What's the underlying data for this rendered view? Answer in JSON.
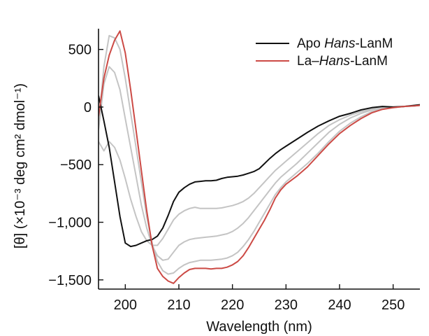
{
  "chart_data": {
    "type": "line",
    "xlabel": "Wavelength (nm)",
    "ylabel": "[θ] (×10⁻³ deg cm² dmol⁻¹)",
    "xlim": [
      195,
      255
    ],
    "ylim": [
      -1580,
      680
    ],
    "x_ticks": [
      200,
      210,
      220,
      230,
      240,
      250
    ],
    "x_tick_labels": [
      "200",
      "210",
      "220",
      "230",
      "240",
      "250"
    ],
    "y_ticks": [
      500,
      0,
      -500,
      -1000,
      -1500
    ],
    "y_tick_labels": [
      "500",
      "0",
      "−500",
      "−1,000",
      "−1,500"
    ],
    "legend_position": "top-right",
    "series": [
      {
        "legend": true,
        "name_parts": [
          {
            "text": "Apo ",
            "italic": false
          },
          {
            "text": "Hans",
            "italic": true
          },
          {
            "text": "-LanM",
            "italic": false
          }
        ],
        "color": "#111111",
        "points": [
          [
            195,
            100
          ],
          [
            196,
            -120
          ],
          [
            197,
            -350
          ],
          [
            198,
            -650
          ],
          [
            199,
            -950
          ],
          [
            200,
            -1180
          ],
          [
            201,
            -1210
          ],
          [
            202,
            -1200
          ],
          [
            203,
            -1180
          ],
          [
            204,
            -1160
          ],
          [
            205,
            -1150
          ],
          [
            206,
            -1120
          ],
          [
            207,
            -1050
          ],
          [
            208,
            -940
          ],
          [
            209,
            -820
          ],
          [
            210,
            -740
          ],
          [
            211,
            -700
          ],
          [
            212,
            -670
          ],
          [
            213,
            -650
          ],
          [
            214,
            -645
          ],
          [
            215,
            -640
          ],
          [
            216,
            -640
          ],
          [
            217,
            -635
          ],
          [
            218,
            -620
          ],
          [
            219,
            -610
          ],
          [
            220,
            -605
          ],
          [
            221,
            -600
          ],
          [
            222,
            -590
          ],
          [
            223,
            -575
          ],
          [
            224,
            -560
          ],
          [
            225,
            -535
          ],
          [
            226,
            -490
          ],
          [
            227,
            -445
          ],
          [
            228,
            -405
          ],
          [
            229,
            -370
          ],
          [
            230,
            -340
          ],
          [
            232,
            -280
          ],
          [
            234,
            -220
          ],
          [
            236,
            -165
          ],
          [
            238,
            -120
          ],
          [
            240,
            -80
          ],
          [
            242,
            -55
          ],
          [
            244,
            -25
          ],
          [
            246,
            -5
          ],
          [
            248,
            5
          ],
          [
            250,
            0
          ],
          [
            252,
            5
          ],
          [
            254,
            15
          ],
          [
            255,
            20
          ]
        ]
      },
      {
        "legend": true,
        "name_parts": [
          {
            "text": "La–",
            "italic": false
          },
          {
            "text": "Hans",
            "italic": true
          },
          {
            "text": "-LanM",
            "italic": false
          }
        ],
        "color": "#cc4a45",
        "points": [
          [
            195,
            -80
          ],
          [
            196,
            250
          ],
          [
            197,
            450
          ],
          [
            198,
            580
          ],
          [
            199,
            660
          ],
          [
            200,
            470
          ],
          [
            201,
            150
          ],
          [
            202,
            -200
          ],
          [
            203,
            -550
          ],
          [
            204,
            -900
          ],
          [
            205,
            -1200
          ],
          [
            206,
            -1400
          ],
          [
            207,
            -1470
          ],
          [
            208,
            -1510
          ],
          [
            209,
            -1530
          ],
          [
            210,
            -1480
          ],
          [
            211,
            -1440
          ],
          [
            212,
            -1410
          ],
          [
            213,
            -1400
          ],
          [
            214,
            -1400
          ],
          [
            215,
            -1400
          ],
          [
            216,
            -1405
          ],
          [
            217,
            -1400
          ],
          [
            218,
            -1400
          ],
          [
            219,
            -1390
          ],
          [
            220,
            -1370
          ],
          [
            221,
            -1340
          ],
          [
            222,
            -1290
          ],
          [
            223,
            -1220
          ],
          [
            224,
            -1140
          ],
          [
            225,
            -1060
          ],
          [
            226,
            -980
          ],
          [
            227,
            -890
          ],
          [
            228,
            -790
          ],
          [
            229,
            -720
          ],
          [
            230,
            -670
          ],
          [
            232,
            -600
          ],
          [
            234,
            -520
          ],
          [
            236,
            -420
          ],
          [
            238,
            -320
          ],
          [
            240,
            -230
          ],
          [
            242,
            -160
          ],
          [
            244,
            -100
          ],
          [
            246,
            -50
          ],
          [
            248,
            -20
          ],
          [
            250,
            -5
          ],
          [
            252,
            5
          ],
          [
            254,
            10
          ],
          [
            255,
            15
          ]
        ]
      },
      {
        "legend": false,
        "color": "#c4c4c4",
        "points": [
          [
            195,
            -300
          ],
          [
            196,
            -380
          ],
          [
            197,
            -300
          ],
          [
            198,
            -350
          ],
          [
            199,
            -460
          ],
          [
            200,
            -620
          ],
          [
            201,
            -800
          ],
          [
            202,
            -950
          ],
          [
            203,
            -1080
          ],
          [
            204,
            -1160
          ],
          [
            205,
            -1200
          ],
          [
            206,
            -1200
          ],
          [
            207,
            -1140
          ],
          [
            208,
            -1060
          ],
          [
            209,
            -980
          ],
          [
            210,
            -930
          ],
          [
            211,
            -900
          ],
          [
            212,
            -880
          ],
          [
            213,
            -870
          ],
          [
            214,
            -880
          ],
          [
            215,
            -880
          ],
          [
            216,
            -880
          ],
          [
            217,
            -880
          ],
          [
            218,
            -875
          ],
          [
            219,
            -865
          ],
          [
            220,
            -855
          ],
          [
            221,
            -840
          ],
          [
            222,
            -820
          ],
          [
            223,
            -790
          ],
          [
            224,
            -750
          ],
          [
            225,
            -700
          ],
          [
            226,
            -650
          ],
          [
            227,
            -600
          ],
          [
            228,
            -550
          ],
          [
            229,
            -510
          ],
          [
            230,
            -470
          ],
          [
            232,
            -390
          ],
          [
            234,
            -310
          ],
          [
            236,
            -230
          ],
          [
            238,
            -160
          ],
          [
            240,
            -110
          ],
          [
            242,
            -70
          ],
          [
            244,
            -40
          ],
          [
            246,
            -15
          ],
          [
            248,
            0
          ],
          [
            250,
            0
          ],
          [
            252,
            5
          ],
          [
            254,
            10
          ],
          [
            255,
            15
          ]
        ]
      },
      {
        "legend": false,
        "color": "#c4c4c4",
        "points": [
          [
            195,
            -200
          ],
          [
            196,
            200
          ],
          [
            197,
            350
          ],
          [
            198,
            300
          ],
          [
            199,
            150
          ],
          [
            200,
            -100
          ],
          [
            201,
            -350
          ],
          [
            202,
            -600
          ],
          [
            203,
            -850
          ],
          [
            204,
            -1050
          ],
          [
            205,
            -1200
          ],
          [
            206,
            -1290
          ],
          [
            207,
            -1330
          ],
          [
            208,
            -1320
          ],
          [
            209,
            -1260
          ],
          [
            210,
            -1200
          ],
          [
            211,
            -1170
          ],
          [
            212,
            -1150
          ],
          [
            213,
            -1140
          ],
          [
            214,
            -1135
          ],
          [
            215,
            -1130
          ],
          [
            216,
            -1125
          ],
          [
            217,
            -1120
          ],
          [
            218,
            -1110
          ],
          [
            219,
            -1100
          ],
          [
            220,
            -1080
          ],
          [
            221,
            -1050
          ],
          [
            222,
            -1010
          ],
          [
            223,
            -960
          ],
          [
            224,
            -900
          ],
          [
            225,
            -840
          ],
          [
            226,
            -780
          ],
          [
            227,
            -720
          ],
          [
            228,
            -660
          ],
          [
            229,
            -610
          ],
          [
            230,
            -570
          ],
          [
            232,
            -490
          ],
          [
            234,
            -400
          ],
          [
            236,
            -310
          ],
          [
            238,
            -220
          ],
          [
            240,
            -150
          ],
          [
            242,
            -95
          ],
          [
            244,
            -55
          ],
          [
            246,
            -25
          ],
          [
            248,
            -5
          ],
          [
            250,
            0
          ],
          [
            252,
            5
          ],
          [
            254,
            10
          ],
          [
            255,
            15
          ]
        ]
      },
      {
        "legend": false,
        "color": "#c4c4c4",
        "points": [
          [
            195,
            -150
          ],
          [
            196,
            350
          ],
          [
            197,
            620
          ],
          [
            198,
            600
          ],
          [
            199,
            500
          ],
          [
            200,
            250
          ],
          [
            201,
            -50
          ],
          [
            202,
            -350
          ],
          [
            203,
            -650
          ],
          [
            204,
            -950
          ],
          [
            205,
            -1180
          ],
          [
            206,
            -1340
          ],
          [
            207,
            -1420
          ],
          [
            208,
            -1450
          ],
          [
            209,
            -1440
          ],
          [
            210,
            -1400
          ],
          [
            211,
            -1370
          ],
          [
            212,
            -1350
          ],
          [
            213,
            -1340
          ],
          [
            214,
            -1330
          ],
          [
            215,
            -1330
          ],
          [
            216,
            -1330
          ],
          [
            217,
            -1325
          ],
          [
            218,
            -1320
          ],
          [
            219,
            -1310
          ],
          [
            220,
            -1290
          ],
          [
            221,
            -1260
          ],
          [
            222,
            -1210
          ],
          [
            223,
            -1150
          ],
          [
            224,
            -1080
          ],
          [
            225,
            -1000
          ],
          [
            226,
            -920
          ],
          [
            227,
            -840
          ],
          [
            228,
            -760
          ],
          [
            229,
            -700
          ],
          [
            230,
            -650
          ],
          [
            232,
            -570
          ],
          [
            234,
            -490
          ],
          [
            236,
            -400
          ],
          [
            238,
            -300
          ],
          [
            240,
            -210
          ],
          [
            242,
            -140
          ],
          [
            244,
            -85
          ],
          [
            246,
            -40
          ],
          [
            248,
            -15
          ],
          [
            250,
            -5
          ],
          [
            252,
            5
          ],
          [
            254,
            10
          ],
          [
            255,
            15
          ]
        ]
      }
    ]
  }
}
